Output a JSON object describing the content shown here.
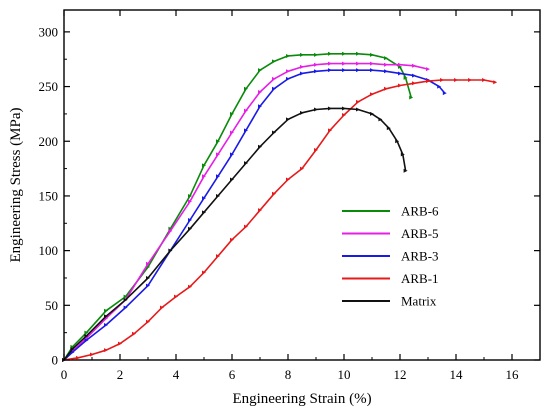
{
  "chart_data": {
    "type": "line",
    "title": "",
    "xlabel": "Engineering Strain (%)",
    "ylabel": "Engineering Stress (MPa)",
    "xlim": [
      0,
      17
    ],
    "ylim": [
      0,
      320
    ],
    "xticks": [
      0,
      2,
      4,
      6,
      8,
      10,
      12,
      14,
      16
    ],
    "yticks": [
      0,
      50,
      100,
      150,
      200,
      250,
      300
    ],
    "grid": false,
    "legend_position": "center-right",
    "series": [
      {
        "name": "ARB-6",
        "color": "#0a8a0a",
        "x": [
          0,
          0.3,
          0.8,
          1.5,
          2.2,
          3.0,
          3.8,
          4.5,
          5.0,
          5.5,
          6.0,
          6.5,
          7.0,
          7.5,
          8.0,
          8.5,
          9.0,
          9.5,
          10.0,
          10.5,
          11.0,
          11.5,
          12.0,
          12.2,
          12.4
        ],
        "y": [
          0,
          12,
          25,
          45,
          58,
          85,
          120,
          150,
          178,
          200,
          225,
          248,
          265,
          273,
          278,
          279,
          279,
          280,
          280,
          280,
          279,
          276,
          268,
          258,
          240
        ]
      },
      {
        "name": "ARB-5",
        "color": "#e61ee6",
        "x": [
          0,
          0.3,
          0.8,
          1.5,
          2.2,
          3.0,
          3.8,
          4.5,
          5.0,
          5.5,
          6.0,
          6.5,
          7.0,
          7.5,
          8.0,
          8.5,
          9.0,
          9.5,
          10.0,
          10.5,
          11.0,
          11.5,
          12.0,
          12.5,
          13.0
        ],
        "y": [
          0,
          8,
          20,
          38,
          55,
          88,
          118,
          145,
          168,
          188,
          208,
          228,
          245,
          257,
          264,
          268,
          270,
          271,
          271,
          271,
          271,
          270,
          270,
          269,
          266
        ]
      },
      {
        "name": "ARB-3",
        "color": "#1a1ae6",
        "x": [
          0,
          0.3,
          0.8,
          1.5,
          2.2,
          3.0,
          3.8,
          4.5,
          5.0,
          5.5,
          6.0,
          6.5,
          7.0,
          7.5,
          8.0,
          8.5,
          9.0,
          9.5,
          10.0,
          10.5,
          11.0,
          11.5,
          12.0,
          12.5,
          13.0,
          13.4,
          13.6
        ],
        "y": [
          0,
          7,
          18,
          32,
          48,
          68,
          100,
          128,
          148,
          168,
          188,
          210,
          232,
          248,
          257,
          262,
          264,
          265,
          265,
          265,
          265,
          264,
          262,
          260,
          256,
          250,
          244
        ]
      },
      {
        "name": "ARB-1",
        "color": "#e61a1a",
        "x": [
          0,
          0.5,
          1.0,
          1.5,
          2.0,
          2.5,
          3.0,
          3.5,
          4.0,
          4.5,
          5.0,
          5.5,
          6.0,
          6.5,
          7.0,
          7.5,
          8.0,
          8.5,
          9.0,
          9.5,
          10.0,
          10.5,
          11.0,
          11.5,
          12.0,
          12.5,
          13.0,
          13.5,
          14.0,
          14.5,
          15.0,
          15.4
        ],
        "y": [
          0,
          2,
          5,
          9,
          15,
          24,
          35,
          48,
          58,
          67,
          80,
          95,
          110,
          122,
          137,
          152,
          165,
          175,
          192,
          210,
          224,
          236,
          243,
          248,
          251,
          253,
          255,
          256,
          256,
          256,
          256,
          254
        ]
      },
      {
        "name": "Matrix",
        "color": "#111111",
        "x": [
          0,
          0.3,
          0.8,
          1.5,
          2.2,
          3.0,
          3.8,
          4.5,
          5.0,
          5.5,
          6.0,
          6.5,
          7.0,
          7.5,
          8.0,
          8.5,
          9.0,
          9.5,
          10.0,
          10.5,
          11.0,
          11.3,
          11.6,
          11.9,
          12.1,
          12.2
        ],
        "y": [
          0,
          10,
          22,
          40,
          55,
          75,
          100,
          120,
          135,
          150,
          165,
          180,
          195,
          208,
          220,
          226,
          229,
          230,
          230,
          229,
          225,
          220,
          212,
          200,
          188,
          173
        ]
      }
    ]
  }
}
